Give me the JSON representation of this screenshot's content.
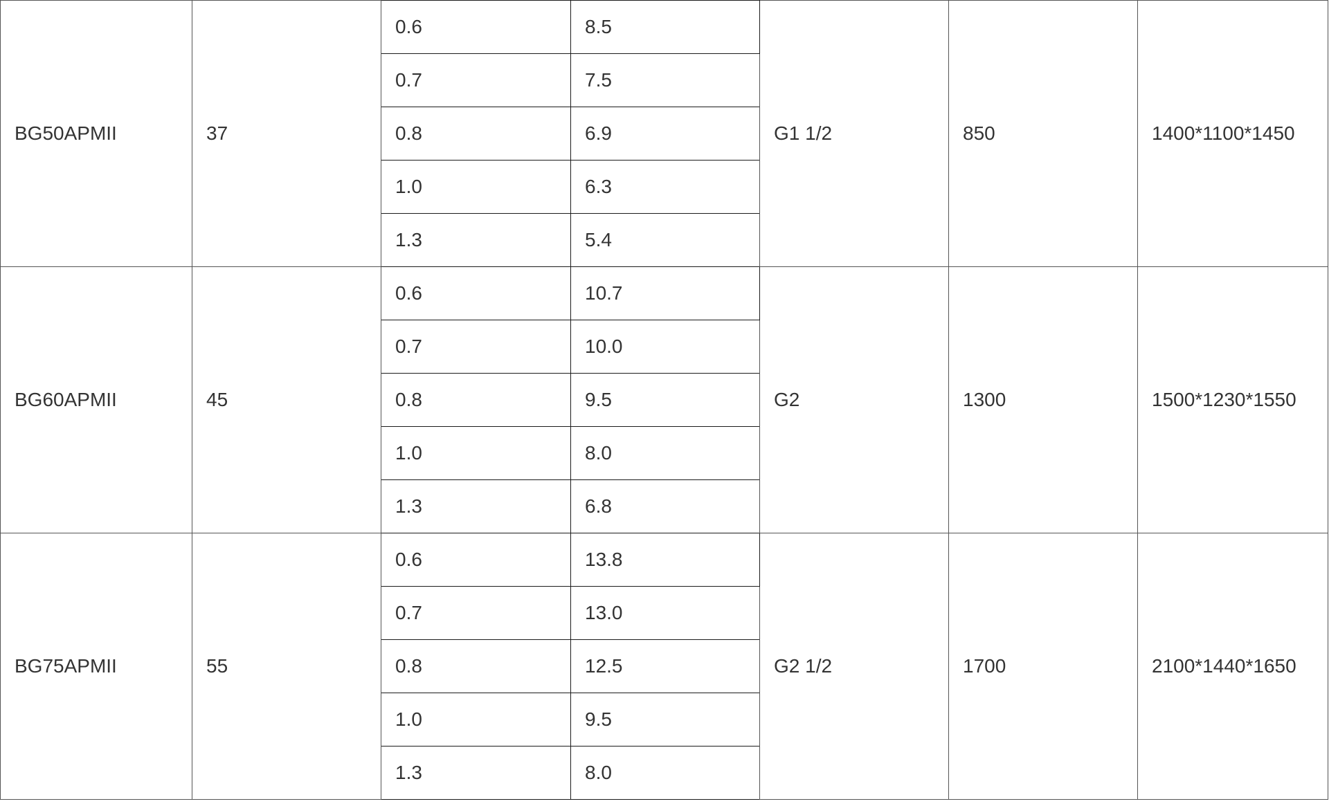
{
  "table": {
    "rows": [
      {
        "model": "BG50APMII",
        "power": "37",
        "specs": [
          {
            "pressure": "0.6",
            "flow": "8.5"
          },
          {
            "pressure": "0.7",
            "flow": "7.5"
          },
          {
            "pressure": "0.8",
            "flow": "6.9"
          },
          {
            "pressure": "1.0",
            "flow": "6.3"
          },
          {
            "pressure": "1.3",
            "flow": "5.4"
          }
        ],
        "outlet": "G1 1/2",
        "weight": "850",
        "dimensions": "1400*1100*1450"
      },
      {
        "model": "BG60APMII",
        "power": "45",
        "specs": [
          {
            "pressure": "0.6",
            "flow": "10.7"
          },
          {
            "pressure": "0.7",
            "flow": "10.0"
          },
          {
            "pressure": "0.8",
            "flow": "9.5"
          },
          {
            "pressure": "1.0",
            "flow": "8.0"
          },
          {
            "pressure": "1.3",
            "flow": "6.8"
          }
        ],
        "outlet": "G2",
        "weight": "1300",
        "dimensions": "1500*1230*1550"
      },
      {
        "model": "BG75APMII",
        "power": "55",
        "specs": [
          {
            "pressure": "0.6",
            "flow": "13.8"
          },
          {
            "pressure": "0.7",
            "flow": "13.0"
          },
          {
            "pressure": "0.8",
            "flow": "12.5"
          },
          {
            "pressure": "1.0",
            "flow": "9.5"
          },
          {
            "pressure": "1.3",
            "flow": "8.0"
          }
        ],
        "outlet": "G2 1/2",
        "weight": "1700",
        "dimensions": "2100*1440*1650"
      }
    ]
  }
}
